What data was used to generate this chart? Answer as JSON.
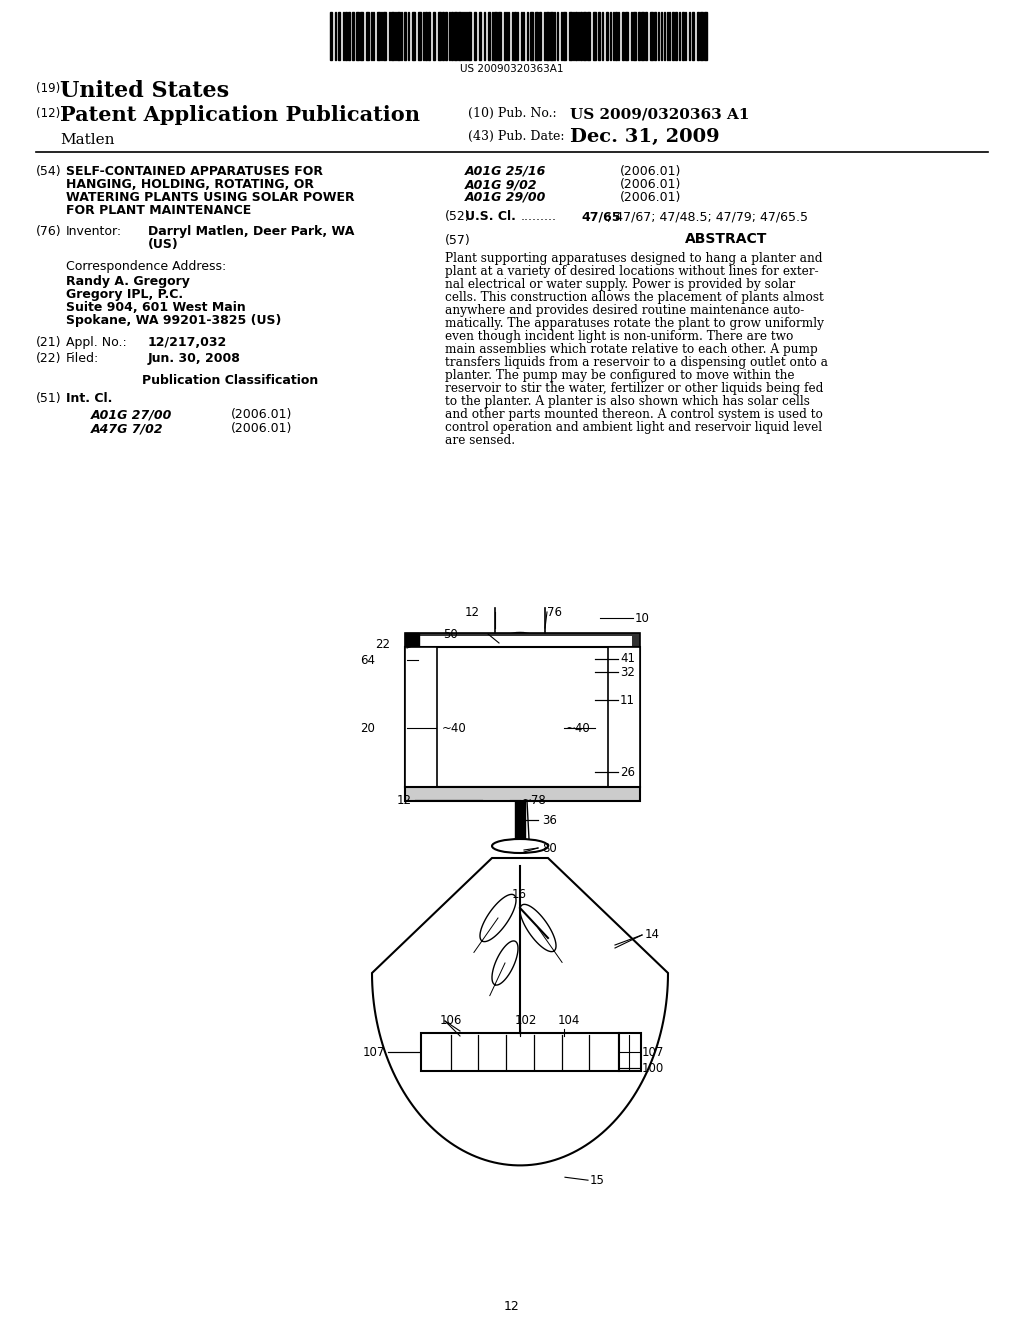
{
  "bg_color": "#ffffff",
  "barcode_text": "US 20090320363A1",
  "patent_number_label": "(19)",
  "patent_country": "United States",
  "app_type_label": "(12)",
  "app_type": "Patent Application Publication",
  "pub_no_label": "(10) Pub. No.:",
  "pub_no": "US 2009/0320363 A1",
  "inventor_surname": "Matlen",
  "pub_date_label": "(43) Pub. Date:",
  "pub_date": "Dec. 31, 2009",
  "title_num": "(54)",
  "title_line1": "SELF-CONTAINED APPARATUSES FOR",
  "title_line2": "HANGING, HOLDING, ROTATING, OR",
  "title_line3": "WATERING PLANTS USING SOLAR POWER",
  "title_line4": "FOR PLANT MAINTENANCE",
  "inventor_num": "(76)",
  "inventor_label": "Inventor:",
  "inventor_name_1": "Darryl Matlen, Deer Park, WA",
  "inventor_name_2": "(US)",
  "corr_address_label": "Correspondence Address:",
  "corr_name": "Randy A. Gregory",
  "corr_firm": "Gregory IPL, P.C.",
  "corr_addr1": "Suite 904, 601 West Main",
  "corr_addr2": "Spokane, WA 99201-3825 (US)",
  "appl_num": "(21)",
  "appl_label": "Appl. No.:",
  "appl_value": "12/217,032",
  "filed_num": "(22)",
  "filed_label": "Filed:",
  "filed_value": "Jun. 30, 2008",
  "pub_class_title": "Publication Classification",
  "int_cl_num": "(51)",
  "int_cl_label": "Int. Cl.",
  "int_cl_1": "A01G 27/00",
  "int_cl_1_date": "(2006.01)",
  "int_cl_2": "A47G 7/02",
  "int_cl_2_date": "(2006.01)",
  "right_cls_1": "A01G 25/16",
  "right_cls_1_date": "(2006.01)",
  "right_cls_2": "A01G 9/02",
  "right_cls_2_date": "(2006.01)",
  "right_cls_3": "A01G 29/00",
  "right_cls_3_date": "(2006.01)",
  "us_cl_num": "(52)",
  "us_cl_label": "U.S. Cl.",
  "us_cl_dots": ".........",
  "us_cl_bold": "47/65",
  "us_cl_rest": "; 47/67; 47/48.5; 47/79; 47/65.5",
  "abstract_num": "(57)",
  "abstract_title": "ABSTRACT",
  "abstract_lines": [
    "Plant supporting apparatuses designed to hang a planter and",
    "plant at a variety of desired locations without lines for exter-",
    "nal electrical or water supply. Power is provided by solar",
    "cells. This construction allows the placement of plants almost",
    "anywhere and provides desired routine maintenance auto-",
    "matically. The apparatuses rotate the plant to grow uniformly",
    "even though incident light is non-uniform. There are two",
    "main assemblies which rotate relative to each other. A pump",
    "transfers liquids from a reservoir to a dispensing outlet onto a",
    "planter. The pump may be configured to move within the",
    "reservoir to stir the water, fertilizer or other liquids being fed",
    "to the planter. A planter is also shown which has solar cells",
    "and other parts mounted thereon. A control system is used to",
    "control operation and ambient light and reservoir liquid level",
    "are sensed."
  ],
  "page_num": "12"
}
